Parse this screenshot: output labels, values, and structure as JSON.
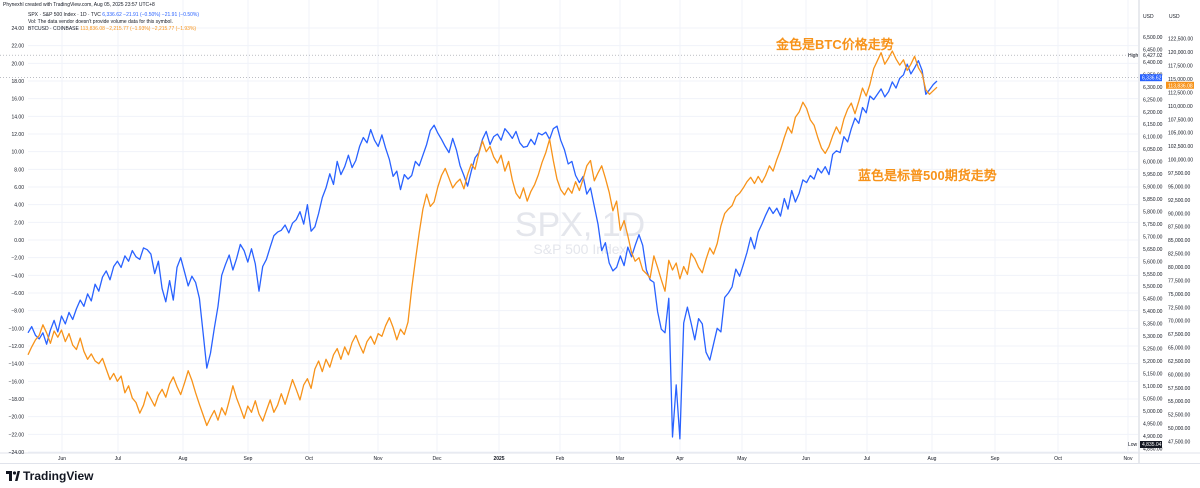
{
  "header": {
    "credit": "Phynexhl created with TradingView.com, Aug 05, 2025 23:57 UTC+8",
    "line1_label": "SPX · S&P 500 Index · 1D · TVC",
    "line1_values": "6,336.62  −21.91 (−0.50%)  −21.91 (−0.50%)",
    "line2": "Vol: The data vendor doesn't provide volume data for this symbol.",
    "line3_label": "BTCUSD · COINBASE",
    "line3_values": "113,836.08  −2,215.77 (−1.93%)  −2,215.77 (−1.93%)"
  },
  "annotations": {
    "btc": "金色是BTC价格走势",
    "spx": "蓝色是标普500期货走势"
  },
  "watermark": {
    "symbol": "SPX, 1D",
    "name": "S&P 500 Index"
  },
  "footer": {
    "brand": "TradingView"
  },
  "colors": {
    "spx": "#2962ff",
    "btc": "#f7931a",
    "grid": "#f0f3fa",
    "text": "#131722"
  },
  "chart_data": {
    "type": "line",
    "title": "",
    "x_axis_labels": [
      "Jun",
      "Jul",
      "Aug",
      "Sep",
      "Oct",
      "Nov",
      "Dec",
      "2025",
      "Feb",
      "Mar",
      "Apr",
      "May",
      "Jun",
      "Jul",
      "Aug",
      "Sep",
      "Oct",
      "Nov"
    ],
    "left_axis": {
      "ticks": [
        "24.00",
        "22.00",
        "20.00",
        "18.00",
        "16.00",
        "14.00",
        "12.00",
        "10.00",
        "8.00",
        "6.00",
        "4.00",
        "2.00",
        "0.00",
        "−2.00",
        "−4.00",
        "−6.00",
        "−8.00",
        "−10.00",
        "−12.00",
        "−14.00",
        "−16.00",
        "−18.00",
        "−20.00",
        "−22.00",
        "−24.00"
      ],
      "range": [
        -24,
        24
      ]
    },
    "right_axis_spx": {
      "unit": "USD",
      "ticks": [
        "6,500.00",
        "6,450.00",
        "6,400.00",
        "6,350.00",
        "6,300.00",
        "6,250.00",
        "6,200.00",
        "6,150.00",
        "6,100.00",
        "6,050.00",
        "6,000.00",
        "5,950.00",
        "5,900.00",
        "5,850.00",
        "5,800.00",
        "5,750.00",
        "5,700.00",
        "5,650.00",
        "5,600.00",
        "5,550.00",
        "5,500.00",
        "5,450.00",
        "5,400.00",
        "5,350.00",
        "5,300.00",
        "5,250.00",
        "5,200.00",
        "5,150.00",
        "5,100.00",
        "5,050.00",
        "5,000.00",
        "4,950.00",
        "4,900.00",
        "4,850.00"
      ],
      "range": [
        4835,
        6536
      ]
    },
    "right_axis_btc": {
      "unit": "USD",
      "ticks": [
        "122,500.00",
        "120,000.00",
        "117,500.00",
        "115,000.00",
        "112,500.00",
        "110,000.00",
        "107,500.00",
        "105,000.00",
        "102,500.00",
        "100,000.00",
        "97,500.00",
        "95,000.00",
        "92,500.00",
        "90,000.00",
        "87,500.00",
        "85,000.00",
        "82,500.00",
        "80,000.00",
        "77,500.00",
        "75,000.00",
        "72,500.00",
        "70,000.00",
        "67,500.00",
        "65,000.00",
        "62,500.00",
        "60,000.00",
        "57,500.00",
        "55,000.00",
        "52,500.00",
        "50,000.00",
        "47,500.00"
      ],
      "range": [
        45550,
        124500
      ]
    },
    "high_label": "High",
    "high_value": "6,427.02",
    "low_label": "Low",
    "low_value": "4,835.04",
    "last_spx": "6,336.62",
    "last_btc": "113,836.08",
    "series": [
      {
        "name": "SPX",
        "axis": "left",
        "values": [
          -10.5,
          -9.8,
          -10.8,
          -11.2,
          -10.5,
          -11.8,
          -10.2,
          -9.1,
          -10.4,
          -8.6,
          -9.5,
          -8.2,
          -9.0,
          -7.8,
          -6.8,
          -7.5,
          -6.1,
          -6.9,
          -5.0,
          -5.8,
          -4.2,
          -3.5,
          -4.5,
          -3.0,
          -2.4,
          -3.1,
          -1.8,
          -2.4,
          -1.2,
          -1.9,
          -2.2,
          -0.9,
          -1.1,
          -1.6,
          -3.8,
          -2.4,
          -5.5,
          -7.0,
          -4.6,
          -6.8,
          -3.1,
          -2.0,
          -3.6,
          -5.2,
          -4.1,
          -4.8,
          -6.6,
          -10.5,
          -14.5,
          -12.8,
          -10.0,
          -7.5,
          -4.0,
          -2.8,
          -1.7,
          -3.4,
          -2.1,
          -0.5,
          -1.2,
          -2.5,
          -1.0,
          -2.7,
          -5.8,
          -3.0,
          -2.2,
          -0.8,
          0.5,
          0.9,
          1.1,
          1.7,
          0.8,
          1.9,
          2.3,
          3.2,
          1.8,
          4.0,
          1.0,
          1.5,
          3.0,
          4.8,
          5.9,
          7.5,
          6.3,
          8.9,
          7.4,
          8.3,
          9.6,
          8.2,
          9.0,
          10.6,
          11.6,
          11.0,
          12.5,
          11.3,
          10.6,
          11.9,
          10.4,
          9.1,
          7.2,
          7.8,
          5.7,
          7.4,
          6.9,
          7.3,
          8.9,
          8.4,
          9.6,
          10.8,
          12.4,
          13.0,
          12.1,
          11.4,
          10.6,
          9.9,
          11.5,
          10.2,
          8.4,
          7.3,
          6.1,
          7.8,
          9.3,
          9.9,
          11.4,
          12.3,
          10.8,
          11.7,
          12.0,
          11.3,
          12.6,
          12.1,
          11.5,
          12.3,
          11.0,
          10.5,
          10.6,
          11.4,
          10.8,
          12.1,
          11.9,
          12.2,
          11.4,
          12.6,
          12.9,
          11.3,
          10.2,
          8.6,
          8.9,
          7.3,
          6.5,
          7.2,
          5.2,
          5.9,
          3.8,
          1.8,
          -1.2,
          -0.3,
          -2.6,
          -3.5,
          -3.1,
          -1.8,
          -2.9,
          -0.8,
          -1.9,
          -0.6,
          0.6,
          -0.6,
          -3.4,
          -4.5,
          -4.8,
          -8.1,
          -10.1,
          -10.5,
          -6.6,
          -22.3,
          -16.4,
          -22.5,
          -9.4,
          -7.6,
          -9.4,
          -11.3,
          -8.9,
          -9.5,
          -12.7,
          -13.6,
          -11.8,
          -10.0,
          -10.4,
          -6.5,
          -6.0,
          -5.3,
          -3.3,
          -4.1,
          -2.8,
          -1.4,
          0.3,
          -1.0,
          0.9,
          1.8,
          2.8,
          3.7,
          3.0,
          3.6,
          2.7,
          4.7,
          3.5,
          5.6,
          4.3,
          5.3,
          6.8,
          6.5,
          7.3,
          6.9,
          8.1,
          7.6,
          8.3,
          7.4,
          9.7,
          10.1,
          9.9,
          11.7,
          11.1,
          12.6,
          13.8,
          13.2,
          15.0,
          14.4,
          16.3,
          15.9,
          16.5,
          17.1,
          16.2,
          16.8,
          17.9,
          17.2,
          18.3,
          18.7,
          19.9,
          18.8,
          19.5,
          20.3,
          19.2,
          16.5,
          17.0,
          17.6,
          18.0
        ]
      },
      {
        "name": "BTCUSD",
        "axis": "left",
        "values": [
          -13.0,
          -12.1,
          -11.3,
          -10.8,
          -9.6,
          -10.5,
          -11.7,
          -10.3,
          -11.0,
          -10.2,
          -11.5,
          -10.6,
          -11.9,
          -12.4,
          -11.1,
          -12.6,
          -13.5,
          -12.9,
          -13.7,
          -14.0,
          -13.4,
          -14.6,
          -15.8,
          -15.1,
          -16.0,
          -15.4,
          -17.3,
          -16.5,
          -17.9,
          -18.4,
          -19.6,
          -18.7,
          -17.2,
          -18.0,
          -18.8,
          -17.6,
          -16.9,
          -17.8,
          -16.3,
          -15.5,
          -16.6,
          -17.5,
          -16.2,
          -14.8,
          -15.9,
          -17.3,
          -18.6,
          -19.8,
          -21.0,
          -20.1,
          -19.3,
          -20.4,
          -19.0,
          -19.8,
          -18.2,
          -16.5,
          -17.9,
          -19.0,
          -20.2,
          -18.8,
          -19.5,
          -18.2,
          -19.7,
          -20.5,
          -19.3,
          -18.1,
          -19.5,
          -18.7,
          -17.4,
          -18.6,
          -17.2,
          -15.8,
          -16.9,
          -18.1,
          -16.4,
          -15.7,
          -16.8,
          -14.6,
          -13.7,
          -14.9,
          -13.5,
          -14.4,
          -13.0,
          -12.3,
          -13.5,
          -12.1,
          -13.0,
          -11.6,
          -10.8,
          -11.9,
          -12.8,
          -11.5,
          -10.9,
          -11.8,
          -10.6,
          -10.9,
          -9.7,
          -8.8,
          -9.9,
          -11.3,
          -10.1,
          -10.7,
          -9.3,
          -5.5,
          -2.3,
          0.8,
          3.5,
          5.2,
          3.8,
          4.3,
          6.0,
          7.3,
          8.1,
          7.0,
          5.9,
          6.5,
          6.9,
          5.8,
          7.4,
          8.6,
          8.0,
          9.8,
          11.2,
          10.0,
          10.6,
          9.4,
          8.7,
          9.6,
          7.8,
          8.9,
          6.8,
          5.3,
          4.7,
          5.9,
          4.4,
          5.5,
          6.3,
          7.4,
          8.8,
          9.9,
          11.4,
          9.0,
          6.9,
          5.7,
          5.1,
          5.9,
          5.3,
          6.6,
          5.6,
          6.9,
          8.4,
          9.0,
          6.7,
          7.6,
          8.4,
          7.0,
          5.4,
          3.3,
          4.4,
          1.1,
          2.2,
          0.5,
          -1.4,
          -2.4,
          -2.0,
          -3.4,
          -3.8,
          -4.3,
          -1.8,
          -3.1,
          -4.5,
          -5.8,
          -2.3,
          -3.4,
          -2.6,
          -4.4,
          -3.0,
          -3.9,
          -1.5,
          -2.1,
          -3.1,
          -3.7,
          -2.2,
          -0.9,
          -1.6,
          -0.4,
          1.6,
          3.0,
          3.5,
          3.9,
          4.9,
          5.3,
          5.9,
          6.6,
          7.1,
          6.4,
          7.2,
          6.5,
          7.3,
          8.4,
          7.8,
          9.1,
          10.2,
          11.6,
          12.8,
          12.1,
          13.9,
          14.5,
          15.6,
          14.9,
          13.6,
          13.0,
          11.6,
          10.4,
          9.8,
          10.6,
          11.8,
          12.8,
          12.0,
          13.7,
          14.8,
          15.5,
          14.3,
          15.7,
          17.2,
          16.3,
          17.6,
          19.4,
          20.3,
          21.2,
          19.9,
          20.6,
          21.4,
          20.5,
          19.8,
          20.4,
          19.2,
          19.9,
          20.8,
          19.5,
          18.8,
          17.0,
          16.5,
          16.9,
          17.3
        ]
      }
    ]
  }
}
